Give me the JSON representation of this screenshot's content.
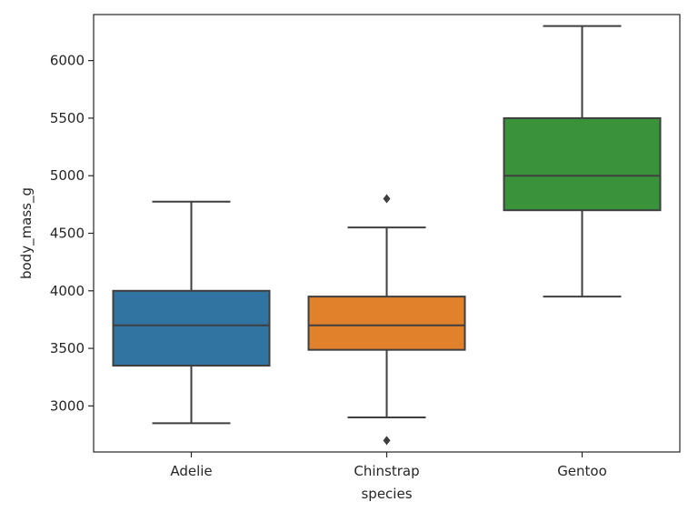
{
  "chart_data": {
    "type": "box",
    "xlabel": "species",
    "ylabel": "body_mass_g",
    "ylim": [
      2600,
      6400
    ],
    "yticks": [
      3000,
      3500,
      4000,
      4500,
      5000,
      5500,
      6000
    ],
    "grid": false,
    "categories": [
      "Adelie",
      "Chinstrap",
      "Gentoo"
    ],
    "boxes": [
      {
        "category": "Adelie",
        "color": "#3274a1",
        "whisker_low": 2850,
        "q1": 3350,
        "median": 3700,
        "q3": 4000,
        "whisker_high": 4775,
        "outliers": []
      },
      {
        "category": "Chinstrap",
        "color": "#e1812c",
        "whisker_low": 2900,
        "q1": 3487.5,
        "median": 3700,
        "q3": 3950,
        "whisker_high": 4550,
        "outliers": [
          2700,
          4800
        ]
      },
      {
        "category": "Gentoo",
        "color": "#3a923a",
        "whisker_low": 3950,
        "q1": 4700,
        "median": 5000,
        "q3": 5500,
        "whisker_high": 6300,
        "outliers": []
      }
    ]
  }
}
